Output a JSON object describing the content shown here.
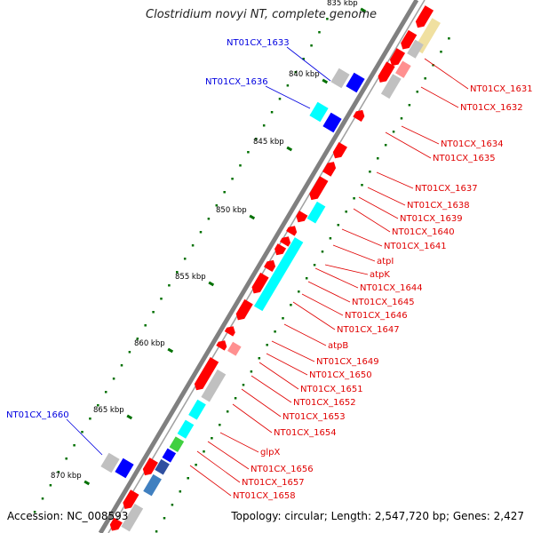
{
  "title": "Clostridium novyi NT, complete genome",
  "footer": {
    "accession": "Accession: NC_008593",
    "topology": "Topology: circular; Length: 2,547,720 bp; Genes: 2,427"
  },
  "colors": {
    "backbone": "#808080",
    "label_red": "#e00000",
    "label_blue": "#0000e0",
    "tick_green": "#007000",
    "feature_red": "#ff0000",
    "feature_cyan": "#00ffff",
    "feature_blue": "#0000ff",
    "feature_gray": "#c0c0c0",
    "feature_pink": "#ff9090",
    "feature_yellow": "#f0e0a0",
    "feature_green": "#40d040",
    "feature_steel": "#4080c0",
    "feature_navy": "#3050a0"
  },
  "scale_ticks": [
    {
      "label": "835 kbp"
    },
    {
      "label": "840 kbp"
    },
    {
      "label": "845 kbp"
    },
    {
      "label": "850 kbp"
    },
    {
      "label": "855 kbp"
    },
    {
      "label": "860 kbp"
    },
    {
      "label": "865 kbp"
    },
    {
      "label": "870 kbp"
    }
  ],
  "labels_left": [
    "NT01CX_1633",
    "NT01CX_1636",
    "NT01CX_1660"
  ],
  "labels_right": [
    "NT01CX_1631",
    "NT01CX_1632",
    "NT01CX_1634",
    "NT01CX_1635",
    "NT01CX_1637",
    "NT01CX_1638",
    "NT01CX_1639",
    "NT01CX_1640",
    "NT01CX_1641",
    "atpI",
    "atpK",
    "NT01CX_1644",
    "NT01CX_1645",
    "NT01CX_1646",
    "NT01CX_1647",
    "atpB",
    "NT01CX_1649",
    "NT01CX_1650",
    "NT01CX_1651",
    "NT01CX_1652",
    "NT01CX_1653",
    "NT01CX_1654",
    "glpX",
    "NT01CX_1656",
    "NT01CX_1657",
    "NT01CX_1658"
  ]
}
